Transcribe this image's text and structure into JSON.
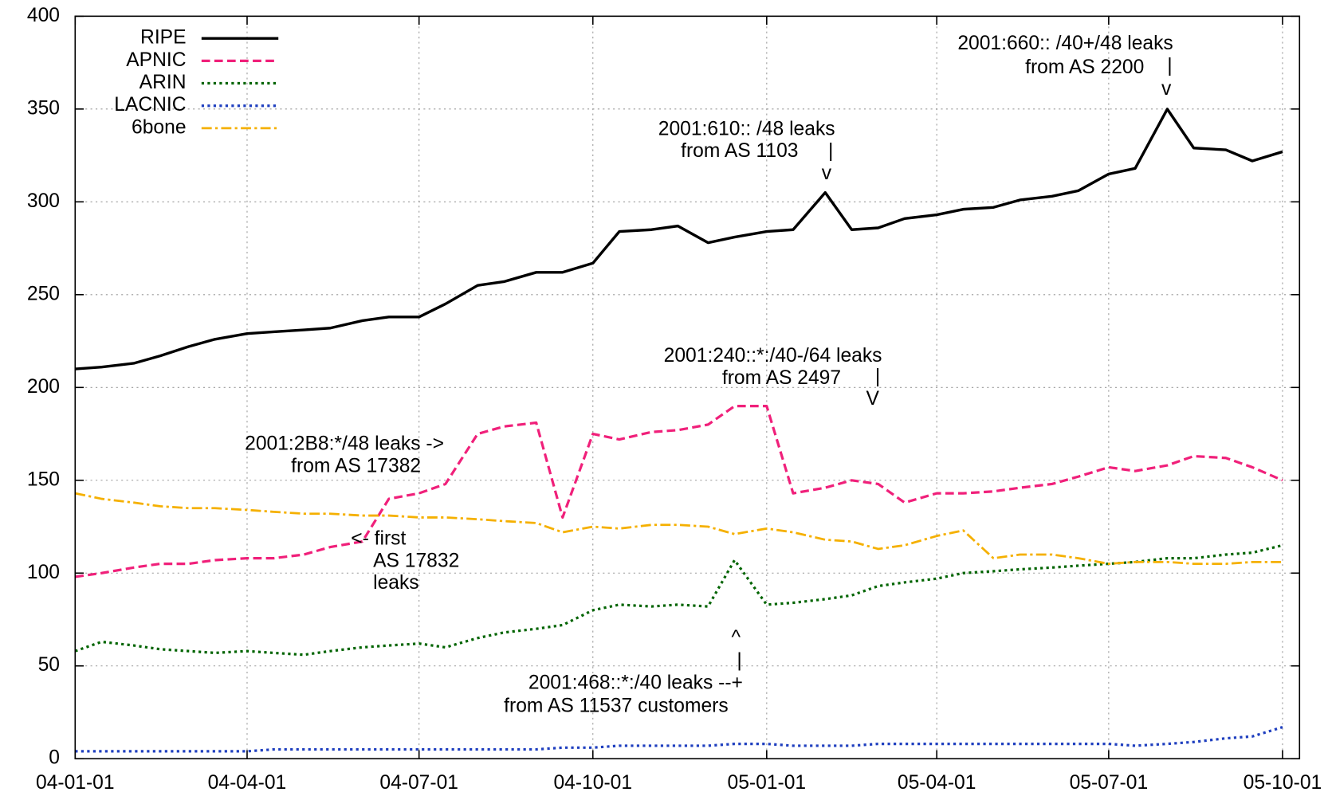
{
  "chart_data": {
    "type": "line",
    "x": [
      "04-01-01",
      "04-01-15",
      "04-02-01",
      "04-02-15",
      "04-03-01",
      "04-03-15",
      "04-04-01",
      "04-04-15",
      "04-05-01",
      "04-05-15",
      "04-06-01",
      "04-06-15",
      "04-07-01",
      "04-07-15",
      "04-08-01",
      "04-08-15",
      "04-09-01",
      "04-09-15",
      "04-10-01",
      "04-10-15",
      "04-11-01",
      "04-11-15",
      "04-12-01",
      "04-12-15",
      "05-01-01",
      "05-01-15",
      "05-02-01",
      "05-02-15",
      "05-03-01",
      "05-03-15",
      "05-04-01",
      "05-04-15",
      "05-05-01",
      "05-05-15",
      "05-06-01",
      "05-06-15",
      "05-07-01",
      "05-07-15",
      "05-08-01",
      "05-08-15",
      "05-09-01",
      "05-09-15",
      "05-10-01"
    ],
    "series": [
      {
        "name": "RIPE",
        "color": "#000000",
        "style": "solid",
        "values": [
          210,
          211,
          213,
          217,
          222,
          226,
          229,
          230,
          231,
          232,
          236,
          238,
          238,
          245,
          255,
          257,
          262,
          262,
          267,
          284,
          285,
          287,
          278,
          281,
          284,
          285,
          305,
          285,
          286,
          291,
          293,
          296,
          297,
          301,
          303,
          306,
          315,
          318,
          350,
          329,
          328,
          322,
          327
        ]
      },
      {
        "name": "APNIC",
        "color": "#f0207a",
        "style": "dashed",
        "values": [
          98,
          100,
          103,
          105,
          105,
          107,
          108,
          108,
          110,
          114,
          117,
          140,
          143,
          148,
          175,
          179,
          181,
          130,
          175,
          172,
          176,
          177,
          180,
          190,
          190,
          143,
          146,
          150,
          148,
          138,
          143,
          143,
          144,
          146,
          148,
          152,
          157,
          155,
          158,
          163,
          162,
          157,
          150
        ]
      },
      {
        "name": "ARIN",
        "color": "#006400",
        "style": "dotted",
        "values": [
          58,
          63,
          61,
          59,
          58,
          57,
          58,
          57,
          56,
          58,
          60,
          61,
          62,
          60,
          65,
          68,
          70,
          72,
          80,
          83,
          82,
          83,
          82,
          107,
          83,
          84,
          86,
          88,
          93,
          95,
          97,
          100,
          101,
          102,
          103,
          104,
          105,
          106,
          108,
          108,
          110,
          111,
          115
        ]
      },
      {
        "name": "LACNIC",
        "color": "#1f3fbf",
        "style": "dotted",
        "values": [
          4,
          4,
          4,
          4,
          4,
          4,
          4,
          5,
          5,
          5,
          5,
          5,
          5,
          5,
          5,
          5,
          5,
          6,
          6,
          7,
          7,
          7,
          7,
          8,
          8,
          7,
          7,
          7,
          8,
          8,
          8,
          8,
          8,
          8,
          8,
          8,
          8,
          7,
          8,
          9,
          11,
          12,
          17
        ]
      },
      {
        "name": "6bone",
        "color": "#f5b000",
        "style": "dashdot",
        "values": [
          143,
          140,
          138,
          136,
          135,
          135,
          134,
          133,
          132,
          132,
          131,
          131,
          130,
          130,
          129,
          128,
          127,
          122,
          125,
          124,
          126,
          126,
          125,
          121,
          124,
          122,
          118,
          117,
          113,
          115,
          120,
          123,
          108,
          110,
          110,
          108,
          105,
          106,
          106,
          105,
          105,
          106,
          106
        ]
      }
    ],
    "xlim": [
      "04-01-01",
      "05-10-10"
    ],
    "xticks": [
      "04-01-01",
      "04-04-01",
      "04-07-01",
      "04-10-01",
      "05-01-01",
      "05-04-01",
      "05-07-01",
      "05-10-01"
    ],
    "ylim": [
      0,
      400
    ],
    "yticks": [
      0,
      50,
      100,
      150,
      200,
      250,
      300,
      350,
      400
    ],
    "grid": true,
    "legend": "top-left",
    "annotations": [
      "2001:660:: /40+/48 leaks",
      "from AS 2200",
      "|",
      "v",
      "2001:610:: /48 leaks",
      "from AS 1103",
      "|",
      "v",
      "2001:240::*:/40-/64 leaks",
      "from AS 2497",
      "|",
      "V",
      "2001:2B8:*/48 leaks ->",
      "from AS 17382",
      "<- first",
      "AS 17832",
      "leaks",
      "^",
      "|",
      "2001:468::*:/40 leaks --+",
      "from AS 11537 customers"
    ]
  }
}
